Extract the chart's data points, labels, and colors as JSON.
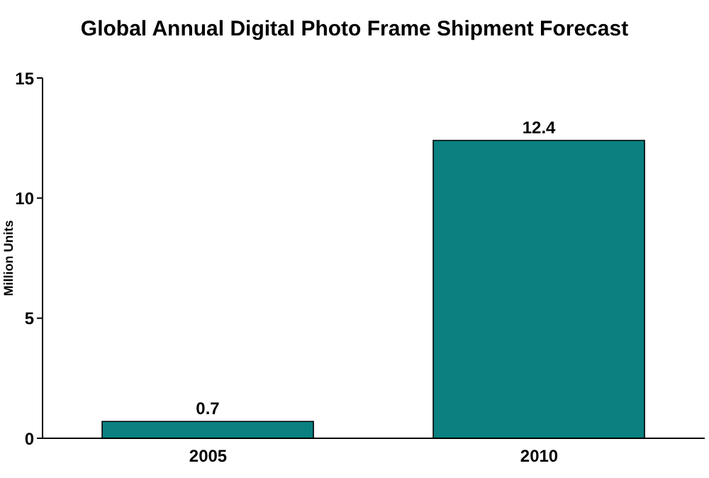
{
  "chart_data": {
    "type": "bar",
    "title": "Global Annual Digital Photo Frame Shipment Forecast",
    "ylabel": "Million Units",
    "categories": [
      "2005",
      "2010"
    ],
    "values": [
      0.7,
      12.4
    ],
    "color": "#0a8080",
    "ylim": [
      0,
      15
    ],
    "yticks": [
      0,
      5,
      10,
      15
    ],
    "grid": false,
    "data_labels": true
  }
}
